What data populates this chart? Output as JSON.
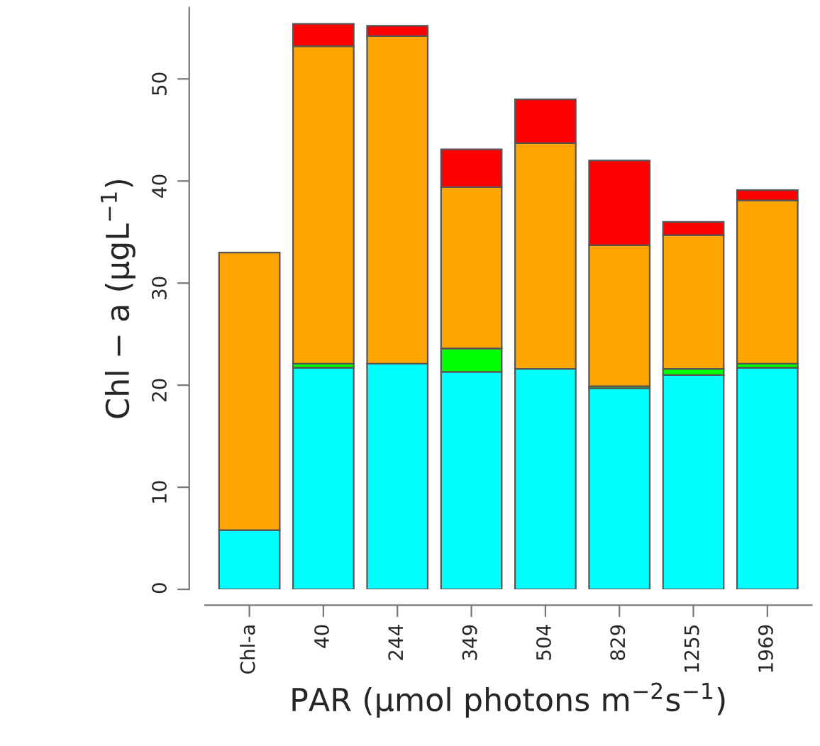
{
  "chart_data": {
    "type": "bar",
    "stacked": true,
    "xlabel": "PAR (μmol photons m$^{−2}$s$^{−1}$)",
    "ylabel": "Chl − a (μgL$^{−1}$)",
    "categories": [
      "Chl-a",
      "40",
      "244",
      "349",
      "504",
      "829",
      "1255",
      "1969"
    ],
    "series": [
      {
        "color": "#00ffff",
        "values": [
          5.8,
          21.7,
          22.1,
          21.3,
          21.6,
          19.7,
          21.0,
          21.7
        ]
      },
      {
        "color": "#00ff00",
        "values": [
          null,
          0.4,
          null,
          2.3,
          null,
          0.2,
          0.6,
          0.4
        ]
      },
      {
        "color": "#ffa500",
        "values": [
          27.2,
          31.1,
          32.1,
          15.8,
          22.1,
          13.8,
          13.1,
          16.0
        ]
      },
      {
        "color": "#ff0000",
        "values": [
          null,
          2.2,
          1.0,
          3.7,
          4.3,
          8.3,
          1.3,
          1.0
        ]
      }
    ],
    "ylim": [
      0,
      57
    ],
    "yticks": [
      0,
      10,
      20,
      30,
      40,
      50
    ],
    "grid": false,
    "legend": false
  }
}
